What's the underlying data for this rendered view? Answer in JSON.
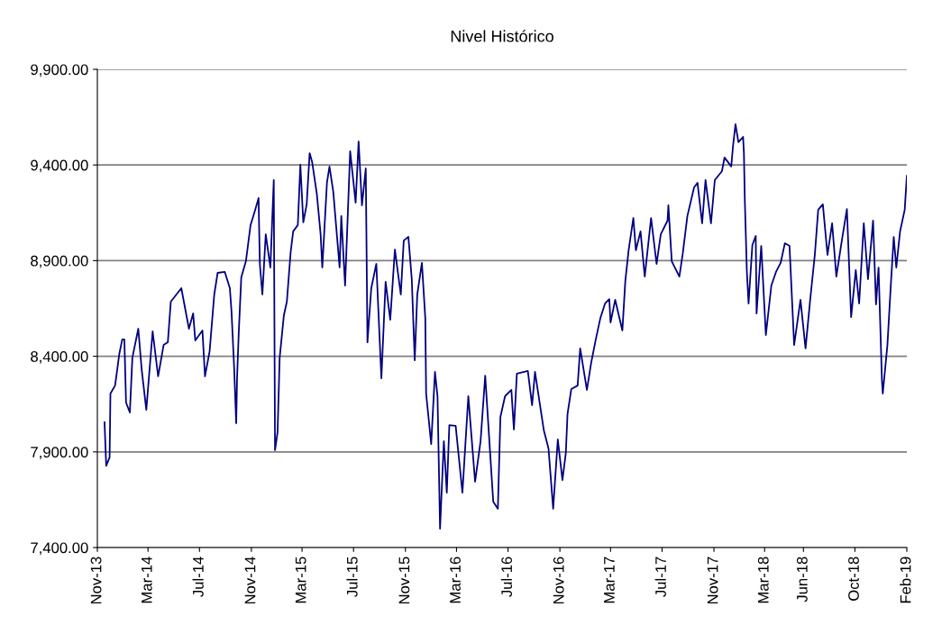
{
  "chart_data": {
    "type": "line",
    "title": "Nivel Histórico",
    "xlim": [
      "2013-11-01",
      "2019-02-01"
    ],
    "xticks": [
      {
        "value": "2013-11-01",
        "label": "Nov-13"
      },
      {
        "value": "2014-03-01",
        "label": "Mar-14"
      },
      {
        "value": "2014-07-01",
        "label": "Jul-14"
      },
      {
        "value": "2014-11-01",
        "label": "Nov-14"
      },
      {
        "value": "2015-03-01",
        "label": "Mar-15"
      },
      {
        "value": "2015-07-01",
        "label": "Jul-15"
      },
      {
        "value": "2015-11-01",
        "label": "Nov-15"
      },
      {
        "value": "2016-03-01",
        "label": "Mar-16"
      },
      {
        "value": "2016-07-01",
        "label": "Jul-16"
      },
      {
        "value": "2016-11-01",
        "label": "Nov-16"
      },
      {
        "value": "2017-03-01",
        "label": "Mar-17"
      },
      {
        "value": "2017-07-01",
        "label": "Jul-17"
      },
      {
        "value": "2017-11-01",
        "label": "Nov-17"
      },
      {
        "value": "2018-03-01",
        "label": "Mar-18"
      },
      {
        "value": "2018-06-01",
        "label": "Jun-18"
      },
      {
        "value": "2018-10-01",
        "label": "Oct-18"
      },
      {
        "value": "2019-02-01",
        "label": "Feb-19"
      }
    ],
    "ylim": [
      7400,
      9900
    ],
    "yticks": [
      {
        "value": 7400,
        "label": "7,400.00"
      },
      {
        "value": 7900,
        "label": "7,900.00"
      },
      {
        "value": 8400,
        "label": "8,400.00"
      },
      {
        "value": 8900,
        "label": "8,900.00"
      },
      {
        "value": 9400,
        "label": "9,400.00"
      },
      {
        "value": 9900,
        "label": "9,900.00"
      }
    ],
    "grid": "y",
    "legend": false,
    "marker": "none",
    "line_style": "solid",
    "x": [
      "2013-11-18",
      "2013-11-22",
      "2013-11-30",
      "2013-12-02",
      "2013-12-13",
      "2013-12-23",
      "2013-12-30",
      "2014-01-04",
      "2014-01-08",
      "2014-01-17",
      "2014-01-23",
      "2014-02-06",
      "2014-02-14",
      "2014-02-25",
      "2014-03-12",
      "2014-03-25",
      "2014-04-07",
      "2014-04-17",
      "2014-04-24",
      "2014-05-19",
      "2014-06-06",
      "2014-06-16",
      "2014-06-21",
      "2014-07-08",
      "2014-07-14",
      "2014-07-25",
      "2014-08-05",
      "2014-08-13",
      "2014-08-30",
      "2014-09-11",
      "2014-09-15",
      "2014-09-21",
      "2014-09-26",
      "2014-09-28",
      "2014-10-02",
      "2014-10-08",
      "2014-10-19",
      "2014-10-30",
      "2014-11-10",
      "2014-11-18",
      "2014-11-21",
      "2014-11-27",
      "2014-12-05",
      "2014-12-16",
      "2014-12-24",
      "2014-12-27",
      "2015-01-02",
      "2015-01-07",
      "2015-01-17",
      "2015-01-24",
      "2015-02-02",
      "2015-02-08",
      "2015-02-19",
      "2015-02-25",
      "2015-03-04",
      "2015-03-12",
      "2015-03-19",
      "2015-03-25",
      "2015-04-05",
      "2015-04-14",
      "2015-04-18",
      "2015-04-29",
      "2015-05-05",
      "2015-05-14",
      "2015-05-29",
      "2015-06-02",
      "2015-06-11",
      "2015-06-17",
      "2015-06-23",
      "2015-07-06",
      "2015-07-13",
      "2015-07-21",
      "2015-07-30",
      "2015-08-03",
      "2015-08-12",
      "2015-08-24",
      "2015-09-05",
      "2015-09-15",
      "2015-09-26",
      "2015-10-07",
      "2015-10-21",
      "2015-10-28",
      "2015-11-08",
      "2015-11-16",
      "2015-11-23",
      "2015-11-29",
      "2015-12-10",
      "2015-12-18",
      "2015-12-20",
      "2016-01-01",
      "2016-01-10",
      "2016-01-16",
      "2016-01-22",
      "2016-01-31",
      "2016-02-07",
      "2016-02-13",
      "2016-02-28",
      "2016-03-15",
      "2016-03-29",
      "2016-04-14",
      "2016-04-27",
      "2016-05-08",
      "2016-05-27",
      "2016-06-07",
      "2016-06-13",
      "2016-06-24",
      "2016-07-09",
      "2016-07-15",
      "2016-07-22",
      "2016-08-17",
      "2016-08-27",
      "2016-09-03",
      "2016-09-24",
      "2016-10-05",
      "2016-10-16",
      "2016-10-27",
      "2016-11-07",
      "2016-11-15",
      "2016-11-19",
      "2016-11-28",
      "2016-12-13",
      "2016-12-19",
      "2017-01-04",
      "2017-01-14",
      "2017-01-25",
      "2017-02-05",
      "2017-02-16",
      "2017-02-26",
      "2017-03-01",
      "2017-03-12",
      "2017-03-29",
      "2017-04-05",
      "2017-04-13",
      "2017-04-24",
      "2017-04-30",
      "2017-05-11",
      "2017-05-21",
      "2017-06-05",
      "2017-06-18",
      "2017-06-28",
      "2017-07-14",
      "2017-07-16",
      "2017-07-24",
      "2017-08-11",
      "2017-08-19",
      "2017-08-30",
      "2017-09-15",
      "2017-09-23",
      "2017-10-04",
      "2017-10-12",
      "2017-10-25",
      "2017-11-03",
      "2017-11-20",
      "2017-11-26",
      "2017-12-12",
      "2017-12-16",
      "2017-12-22",
      "2017-12-29",
      "2018-01-09",
      "2018-01-11",
      "2018-01-13",
      "2018-01-18",
      "2018-01-22",
      "2018-01-31",
      "2018-02-08",
      "2018-02-10",
      "2018-02-21",
      "2018-03-04",
      "2018-03-17",
      "2018-03-28",
      "2018-04-08",
      "2018-04-18",
      "2018-04-29",
      "2018-05-10",
      "2018-05-25",
      "2018-06-06",
      "2018-06-17",
      "2018-06-28",
      "2018-07-06",
      "2018-07-17",
      "2018-07-28",
      "2018-08-08",
      "2018-08-18",
      "2018-08-29",
      "2018-09-12",
      "2018-09-22",
      "2018-10-03",
      "2018-10-11",
      "2018-10-22",
      "2018-11-01",
      "2018-11-13",
      "2018-11-20",
      "2018-11-26",
      "2018-12-04",
      "2018-12-06",
      "2018-12-17",
      "2018-12-25",
      "2019-01-01",
      "2019-01-07",
      "2019-01-16",
      "2019-01-27",
      "2019-02-01"
    ],
    "series": [
      {
        "color": "#000080",
        "values": [
          8055,
          7828,
          7871,
          8205,
          8247,
          8412,
          8488,
          8488,
          8158,
          8106,
          8393,
          8544,
          8332,
          8120,
          8530,
          8295,
          8459,
          8473,
          8685,
          8756,
          8544,
          8624,
          8483,
          8535,
          8295,
          8426,
          8723,
          8836,
          8841,
          8756,
          8629,
          8346,
          8050,
          8285,
          8521,
          8812,
          8897,
          9086,
          9166,
          9227,
          8883,
          8723,
          9038,
          8864,
          9321,
          7909,
          8003,
          8393,
          8615,
          8685,
          8944,
          9053,
          9086,
          9401,
          9100,
          9194,
          9462,
          9415,
          9250,
          9038,
          8864,
          9307,
          9392,
          9260,
          8864,
          9133,
          8770,
          9118,
          9472,
          9203,
          9523,
          9189,
          9382,
          8473,
          8756,
          8883,
          8285,
          8789,
          8591,
          8958,
          8723,
          9005,
          9024,
          8803,
          8379,
          8723,
          8888,
          8601,
          8205,
          7941,
          8318,
          8191,
          7499,
          7956,
          7687,
          8040,
          8036,
          7687,
          8191,
          7744,
          7956,
          8299,
          7640,
          7603,
          8083,
          8191,
          8224,
          8017,
          8309,
          8323,
          8144,
          8318,
          8012,
          7918,
          7603,
          7965,
          7753,
          7894,
          8097,
          8229,
          8247,
          8441,
          8224,
          8365,
          8488,
          8601,
          8676,
          8699,
          8577,
          8695,
          8535,
          8794,
          8958,
          9123,
          8954,
          9053,
          8817,
          9123,
          8883,
          9038,
          9109,
          9189,
          8897,
          8817,
          8935,
          9133,
          9283,
          9307,
          9095,
          9321,
          9095,
          9321,
          9368,
          9439,
          9392,
          9495,
          9613,
          9519,
          9547,
          9462,
          9227,
          8841,
          8676,
          8982,
          9029,
          8624,
          8977,
          8511,
          8770,
          8841,
          8888,
          8991,
          8977,
          8459,
          8695,
          8441,
          8695,
          8930,
          9166,
          9194,
          8930,
          9095,
          8817,
          8977,
          9170,
          8605,
          8850,
          8676,
          9095,
          8803,
          9109,
          8671,
          8864,
          8276,
          8205,
          8459,
          8770,
          9024,
          8864,
          9053,
          9166,
          9344
        ]
      }
    ]
  }
}
